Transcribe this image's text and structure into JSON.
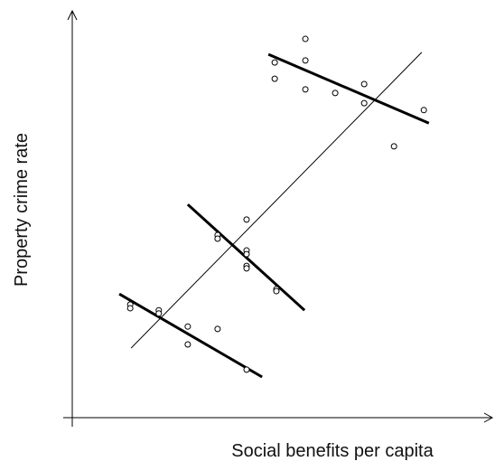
{
  "chart_data": {
    "type": "scatter",
    "x_label": "Social benefits per capita",
    "y_label": "Property crime rate",
    "xlim": [
      0,
      100
    ],
    "ylim": [
      0,
      100
    ],
    "points": {
      "x": [
        13.8,
        13.8,
        20.6,
        20.6,
        27.5,
        27.5,
        34.6,
        41.5,
        34.6,
        34.6,
        41.5,
        41.5,
        41.5,
        41.5,
        41.5,
        48.6,
        48.6,
        48.2,
        48.2,
        55.5,
        55.5,
        55.5,
        62.6,
        69.5,
        69.5,
        76.6,
        83.7
      ],
      "y": [
        27.8,
        26.9,
        26.4,
        25.6,
        22.4,
        18.0,
        21.8,
        11.8,
        44.9,
        44.0,
        48.7,
        41.1,
        40.2,
        37.3,
        36.7,
        31.6,
        31.1,
        87.3,
        83.3,
        93.1,
        87.8,
        80.7,
        79.8,
        82.0,
        77.3,
        66.7,
        75.6
      ],
      "color": "#000000"
    },
    "lines": [
      {
        "x": [
          14.0,
          83.2
        ],
        "y": [
          17.1,
          89.8
        ],
        "width": 1
      },
      {
        "x": [
          11.2,
          45.2
        ],
        "y": [
          30.4,
          10.0
        ],
        "width": 3
      },
      {
        "x": [
          27.5,
          55.3
        ],
        "y": [
          52.4,
          26.4
        ],
        "width": 3
      },
      {
        "x": [
          46.7,
          84.9
        ],
        "y": [
          89.3,
          72.4
        ],
        "width": 3
      }
    ]
  }
}
